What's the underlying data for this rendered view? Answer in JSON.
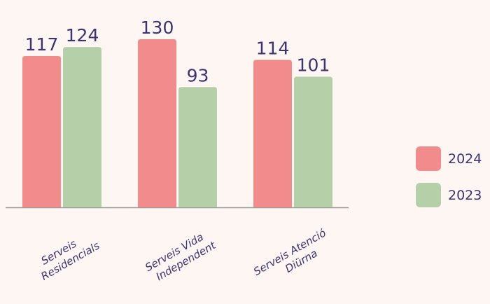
{
  "chart_data": {
    "type": "bar",
    "categories": [
      [
        "Serveis",
        "Residencials"
      ],
      [
        "Serveis Vida",
        "Independent"
      ],
      [
        "Serveis Atenció",
        "Diürna"
      ]
    ],
    "series": [
      {
        "name": "2024",
        "color": "#f28b8b",
        "values": [
          117,
          130,
          114
        ]
      },
      {
        "name": "2023",
        "color": "#b5cfa8",
        "values": [
          124,
          93,
          101
        ]
      }
    ],
    "legend": "right"
  }
}
